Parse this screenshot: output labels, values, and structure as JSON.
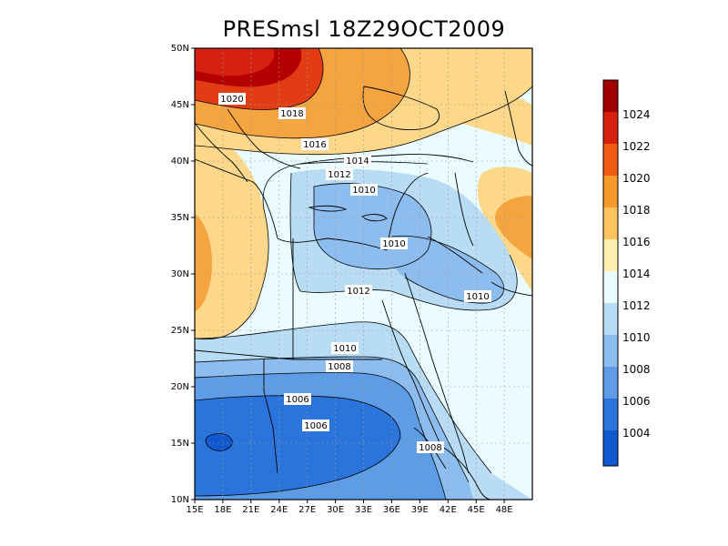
{
  "title": "PRESmsl  18Z29OCT2009",
  "map": {
    "lon_range": [
      15,
      50
    ],
    "lat_range": [
      10,
      50
    ],
    "x_ticks": [
      "15E",
      "18E",
      "21E",
      "24E",
      "27E",
      "30E",
      "33E",
      "36E",
      "39E",
      "42E",
      "45E",
      "48E"
    ],
    "y_ticks": [
      "10N",
      "15N",
      "20N",
      "25N",
      "30N",
      "35N",
      "40N",
      "45N",
      "50N"
    ],
    "gridlines": true,
    "contour_labels": [
      "1020",
      "1018",
      "1016",
      "1014",
      "1012",
      "1010",
      "1010",
      "1010",
      "1012",
      "1010",
      "1008",
      "1006",
      "1006",
      "1008"
    ]
  },
  "colorbar": {
    "labels": [
      "1024",
      "1022",
      "1020",
      "1018",
      "1016",
      "1014",
      "1012",
      "1010",
      "1008",
      "1006",
      "1004"
    ],
    "colors": [
      "#a00000",
      "#d72010",
      "#f05a12",
      "#f59a2a",
      "#fdc45e",
      "#fff0b0",
      "#eafcff",
      "#b9dcf5",
      "#8dbcee",
      "#5e9ce6",
      "#2a74dc",
      "#1058d0"
    ]
  },
  "colors": {
    "very_high": "#b40000",
    "high": "#e23c14",
    "high_mid": "#f5a540",
    "mid_high": "#fdd78a",
    "neutral": "#f0fbff",
    "low_mid": "#a8d0f2",
    "low": "#7aaeea",
    "very_low": "#2a74dc",
    "deep_low": "#1058d0"
  }
}
